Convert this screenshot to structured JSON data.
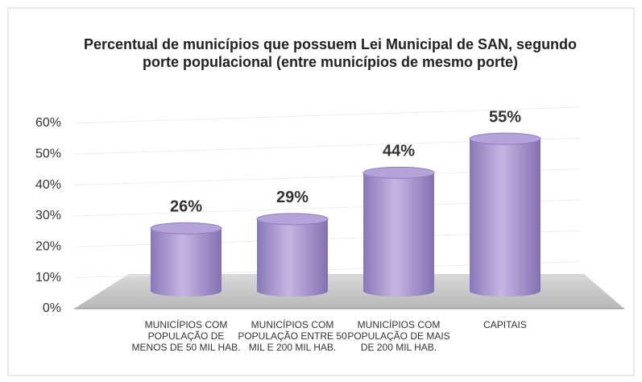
{
  "chart_data": {
    "type": "bar",
    "title": "Percentual de municípios que possuem Lei Municipal de SAN, segundo porte populacional (entre municípios de mesmo porte)",
    "categories": [
      "MUNICÍPIOS COM POPULAÇÃO DE MENOS DE 50 MIL HAB.",
      "MUNICÍPIOS COM POPULAÇÃO ENTRE 50 MIL E 200 MIL HAB.",
      "MUNICÍPIOS COM POPULAÇÃO DE MAIS DE  200 MIL HAB.",
      "CAPITAIS"
    ],
    "values": [
      26,
      29,
      44,
      55
    ],
    "value_labels": [
      "26%",
      "29%",
      "44%",
      "55%"
    ],
    "color": "#9d8cc8",
    "ylim": [
      0,
      60
    ],
    "yticks": [
      {
        "value": 0,
        "label": "0%"
      },
      {
        "value": 10,
        "label": "10%"
      },
      {
        "value": 20,
        "label": "20%"
      },
      {
        "value": 30,
        "label": "30%"
      },
      {
        "value": 40,
        "label": "40%"
      },
      {
        "value": 50,
        "label": "50%"
      },
      {
        "value": 60,
        "label": "60%"
      }
    ],
    "grid": true
  }
}
